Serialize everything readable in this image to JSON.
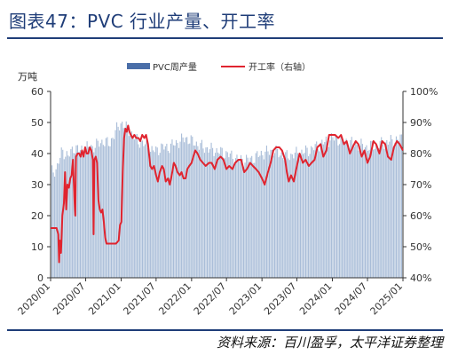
{
  "title": "图表47：PVC 行业产量、开工率",
  "source": "资料来源：百川盈孚，太平洋证券整理",
  "colors": {
    "bar": "#a9bdd8",
    "legend_bar": "#4a6ea8",
    "line": "#e0242f",
    "axis": "#333333",
    "title": "#1f3d78"
  },
  "chart_data": {
    "type": "bar+line",
    "left_unit": "万吨",
    "left_ylim": [
      0,
      60
    ],
    "left_ticks": [
      "0",
      "10",
      "20",
      "30",
      "40",
      "50",
      "60"
    ],
    "right_ylim": [
      40,
      100
    ],
    "right_ticks": [
      "40%",
      "50%",
      "60%",
      "70%",
      "80%",
      "90%",
      "100%"
    ],
    "x_ticks": [
      "2020/01",
      "2020/07",
      "2021/01",
      "2021/07",
      "2022/01",
      "2022/07",
      "2023/01",
      "2023/07",
      "2024/01",
      "2024/07",
      "2025/01"
    ],
    "x_range": [
      "2020/01",
      "2025/01"
    ],
    "legend": [
      {
        "name": "PVC周产量",
        "type": "bar"
      },
      {
        "name": "开工率（右轴）",
        "type": "line"
      }
    ],
    "bar_series": {
      "name": "PVC周产量",
      "anchors": [
        [
          "2020/01",
          34
        ],
        [
          "2020/02",
          35
        ],
        [
          "2020/03",
          41
        ],
        [
          "2020/04",
          39
        ],
        [
          "2020/05",
          42
        ],
        [
          "2020/06",
          41
        ],
        [
          "2020/07",
          42
        ],
        [
          "2020/08",
          42
        ],
        [
          "2020/09",
          43
        ],
        [
          "2020/10",
          44
        ],
        [
          "2020/11",
          43
        ],
        [
          "2020/12",
          47
        ],
        [
          "2021/01",
          50
        ],
        [
          "2021/02",
          48
        ],
        [
          "2021/03",
          46
        ],
        [
          "2021/04",
          44
        ],
        [
          "2021/05",
          43
        ],
        [
          "2021/06",
          41
        ],
        [
          "2021/07",
          41
        ],
        [
          "2021/08",
          42
        ],
        [
          "2021/09",
          42
        ],
        [
          "2021/10",
          43
        ],
        [
          "2021/11",
          44
        ],
        [
          "2021/12",
          45
        ],
        [
          "2022/01",
          44
        ],
        [
          "2022/03",
          42
        ],
        [
          "2022/05",
          41
        ],
        [
          "2022/07",
          40
        ],
        [
          "2022/09",
          38
        ],
        [
          "2022/11",
          38
        ],
        [
          "2023/01",
          40
        ],
        [
          "2023/03",
          41
        ],
        [
          "2023/05",
          39
        ],
        [
          "2023/07",
          40
        ],
        [
          "2023/09",
          41
        ],
        [
          "2023/11",
          43
        ],
        [
          "2024/01",
          45
        ],
        [
          "2024/03",
          44
        ],
        [
          "2024/05",
          43
        ],
        [
          "2024/07",
          42
        ],
        [
          "2024/09",
          43
        ],
        [
          "2024/11",
          44
        ],
        [
          "2025/01",
          45
        ]
      ]
    },
    "line_series": {
      "name": "开工率（右轴）",
      "points": [
        [
          "2020/01/01",
          56
        ],
        [
          "2020/01/20",
          56
        ],
        [
          "2020/02/01",
          56
        ],
        [
          "2020/02/10",
          54
        ],
        [
          "2020/02/14",
          45
        ],
        [
          "2020/02/18",
          52
        ],
        [
          "2020/02/24",
          48
        ],
        [
          "2020/03/02",
          60
        ],
        [
          "2020/03/10",
          64
        ],
        [
          "2020/03/16",
          74
        ],
        [
          "2020/03/22",
          62
        ],
        [
          "2020/03/28",
          70
        ],
        [
          "2020/04/05",
          69
        ],
        [
          "2020/04/12",
          72
        ],
        [
          "2020/04/19",
          73
        ],
        [
          "2020/04/26",
          78
        ],
        [
          "2020/05/03",
          66
        ],
        [
          "2020/05/08",
          60
        ],
        [
          "2020/05/12",
          79
        ],
        [
          "2020/05/20",
          80
        ],
        [
          "2020/05/28",
          80
        ],
        [
          "2020/06/05",
          79
        ],
        [
          "2020/06/12",
          81
        ],
        [
          "2020/06/20",
          79
        ],
        [
          "2020/06/28",
          82
        ],
        [
          "2020/07/06",
          80
        ],
        [
          "2020/07/14",
          80
        ],
        [
          "2020/07/22",
          82
        ],
        [
          "2020/07/30",
          81
        ],
        [
          "2020/08/07",
          78
        ],
        [
          "2020/08/11",
          54
        ],
        [
          "2020/08/15",
          78
        ],
        [
          "2020/08/22",
          79
        ],
        [
          "2020/08/29",
          77
        ],
        [
          "2020/09/05",
          65
        ],
        [
          "2020/09/12",
          62
        ],
        [
          "2020/09/19",
          61
        ],
        [
          "2020/09/26",
          62
        ],
        [
          "2020/10/03",
          58
        ],
        [
          "2020/10/10",
          53
        ],
        [
          "2020/10/17",
          51
        ],
        [
          "2020/10/24",
          51
        ],
        [
          "2020/11/07",
          51
        ],
        [
          "2020/11/21",
          51
        ],
        [
          "2020/12/05",
          51
        ],
        [
          "2020/12/19",
          52
        ],
        [
          "2020/12/26",
          57
        ],
        [
          "2021/01/02",
          58
        ],
        [
          "2021/01/09",
          74
        ],
        [
          "2021/01/16",
          85
        ],
        [
          "2021/01/23",
          88
        ],
        [
          "2021/01/30",
          87
        ],
        [
          "2021/02/06",
          89
        ],
        [
          "2021/02/13",
          87
        ],
        [
          "2021/02/20",
          86
        ],
        [
          "2021/03/01",
          85
        ],
        [
          "2021/03/10",
          86
        ],
        [
          "2021/03/20",
          85
        ],
        [
          "2021/04/01",
          85
        ],
        [
          "2021/04/10",
          84
        ],
        [
          "2021/04/20",
          86
        ],
        [
          "2021/05/01",
          85
        ],
        [
          "2021/05/10",
          86
        ],
        [
          "2021/05/20",
          83
        ],
        [
          "2021/06/01",
          76
        ],
        [
          "2021/06/10",
          75
        ],
        [
          "2021/06/20",
          76
        ],
        [
          "2021/07/01",
          73
        ],
        [
          "2021/07/10",
          71
        ],
        [
          "2021/07/20",
          74
        ],
        [
          "2021/08/01",
          76
        ],
        [
          "2021/08/10",
          75
        ],
        [
          "2021/08/20",
          71
        ],
        [
          "2021/09/01",
          72
        ],
        [
          "2021/09/10",
          70
        ],
        [
          "2021/09/20",
          73
        ],
        [
          "2021/10/01",
          77
        ],
        [
          "2021/10/10",
          76
        ],
        [
          "2021/10/20",
          74
        ],
        [
          "2021/11/01",
          73
        ],
        [
          "2021/11/10",
          74
        ],
        [
          "2021/11/20",
          72
        ],
        [
          "2021/12/01",
          72
        ],
        [
          "2021/12/10",
          75
        ],
        [
          "2021/12/20",
          76
        ],
        [
          "2022/01/01",
          77
        ],
        [
          "2022/01/10",
          79
        ],
        [
          "2022/01/20",
          81
        ],
        [
          "2022/02/01",
          80
        ],
        [
          "2022/02/15",
          78
        ],
        [
          "2022/03/01",
          77
        ],
        [
          "2022/03/15",
          76
        ],
        [
          "2022/04/01",
          77
        ],
        [
          "2022/04/15",
          77
        ],
        [
          "2022/05/01",
          75
        ],
        [
          "2022/05/15",
          78
        ],
        [
          "2022/06/01",
          79
        ],
        [
          "2022/06/15",
          78
        ],
        [
          "2022/07/01",
          75
        ],
        [
          "2022/07/15",
          76
        ],
        [
          "2022/08/01",
          75
        ],
        [
          "2022/08/15",
          77
        ],
        [
          "2022/09/01",
          78
        ],
        [
          "2022/09/15",
          78
        ],
        [
          "2022/10/01",
          74
        ],
        [
          "2022/10/15",
          75
        ],
        [
          "2022/11/01",
          77
        ],
        [
          "2022/11/15",
          76
        ],
        [
          "2022/12/01",
          75
        ],
        [
          "2022/12/15",
          74
        ],
        [
          "2023/01/01",
          72
        ],
        [
          "2023/01/15",
          70
        ],
        [
          "2023/02/01",
          74
        ],
        [
          "2023/02/15",
          77
        ],
        [
          "2023/03/01",
          81
        ],
        [
          "2023/03/15",
          82
        ],
        [
          "2023/04/01",
          82
        ],
        [
          "2023/04/15",
          81
        ],
        [
          "2023/05/01",
          78
        ],
        [
          "2023/05/10",
          74
        ],
        [
          "2023/05/20",
          71
        ],
        [
          "2023/06/01",
          73
        ],
        [
          "2023/06/15",
          71
        ],
        [
          "2023/07/01",
          76
        ],
        [
          "2023/07/15",
          80
        ],
        [
          "2023/08/01",
          77
        ],
        [
          "2023/08/15",
          78
        ],
        [
          "2023/09/01",
          76
        ],
        [
          "2023/09/15",
          77
        ],
        [
          "2023/10/01",
          78
        ],
        [
          "2023/10/15",
          82
        ],
        [
          "2023/11/01",
          83
        ],
        [
          "2023/11/15",
          79
        ],
        [
          "2023/12/01",
          81
        ],
        [
          "2023/12/15",
          86
        ],
        [
          "2024/01/01",
          86
        ],
        [
          "2024/01/15",
          86
        ],
        [
          "2024/02/01",
          85
        ],
        [
          "2024/02/15",
          86
        ],
        [
          "2024/03/01",
          83
        ],
        [
          "2024/03/15",
          84
        ],
        [
          "2024/04/01",
          80
        ],
        [
          "2024/04/15",
          82
        ],
        [
          "2024/05/01",
          84
        ],
        [
          "2024/05/15",
          83
        ],
        [
          "2024/06/01",
          79
        ],
        [
          "2024/06/15",
          81
        ],
        [
          "2024/07/01",
          77
        ],
        [
          "2024/07/15",
          79
        ],
        [
          "2024/08/01",
          84
        ],
        [
          "2024/08/15",
          83
        ],
        [
          "2024/09/01",
          80
        ],
        [
          "2024/09/15",
          84
        ],
        [
          "2024/10/01",
          83
        ],
        [
          "2024/10/15",
          79
        ],
        [
          "2024/11/01",
          78
        ],
        [
          "2024/11/15",
          82
        ],
        [
          "2024/12/01",
          84
        ],
        [
          "2024/12/15",
          83
        ],
        [
          "2025/01/01",
          81
        ]
      ]
    }
  }
}
